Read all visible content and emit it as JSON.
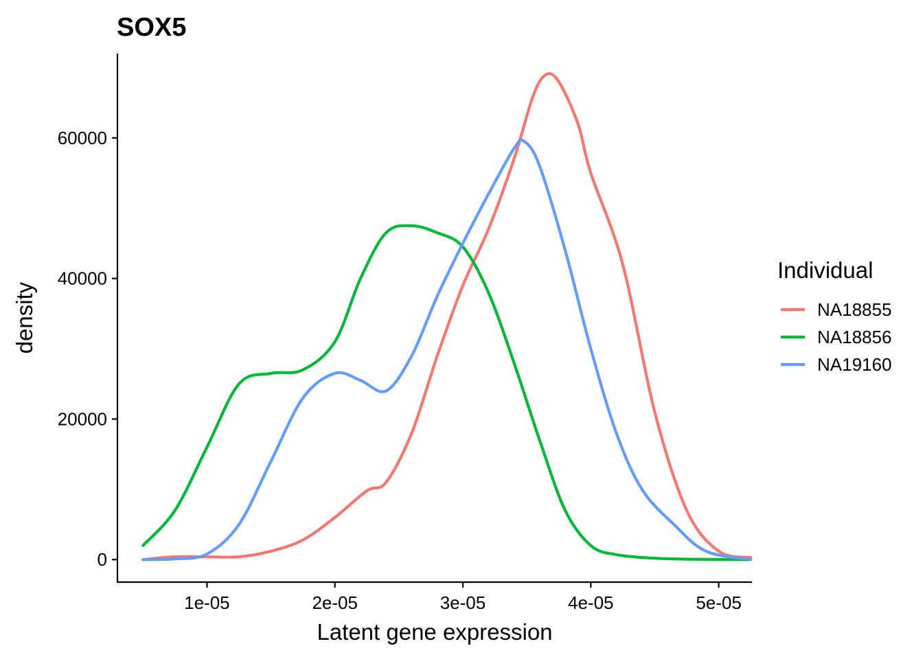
{
  "chart_data": {
    "type": "line",
    "title": "SOX5",
    "xlabel": "Latent gene expression",
    "ylabel": "density",
    "xlim": [
      3e-06,
      5.26e-05
    ],
    "ylim": [
      -3200,
      72000
    ],
    "x_ticks": [
      1e-05,
      2e-05,
      3e-05,
      4e-05,
      5e-05
    ],
    "x_tick_labels": [
      "1e-05",
      "2e-05",
      "3e-05",
      "4e-05",
      "5e-05"
    ],
    "y_ticks": [
      0,
      20000,
      40000,
      60000
    ],
    "y_tick_labels": [
      "0",
      "20000",
      "40000",
      "60000"
    ],
    "grid": false,
    "legend": {
      "title": "Individual",
      "position": "right"
    },
    "series": [
      {
        "name": "NA18855",
        "color": "#F8766D",
        "points": [
          [
            5e-06,
            0
          ],
          [
            7.5e-06,
            400
          ],
          [
            1e-05,
            400
          ],
          [
            1.25e-05,
            400
          ],
          [
            1.5e-05,
            1200
          ],
          [
            1.75e-05,
            2800
          ],
          [
            2e-05,
            6000
          ],
          [
            2.25e-05,
            9800
          ],
          [
            2.4e-05,
            11000
          ],
          [
            2.6e-05,
            18000
          ],
          [
            2.8e-05,
            29000
          ],
          [
            3e-05,
            39000
          ],
          [
            3.2e-05,
            47000
          ],
          [
            3.4e-05,
            57000
          ],
          [
            3.55e-05,
            66000
          ],
          [
            3.65e-05,
            69000
          ],
          [
            3.75e-05,
            68000
          ],
          [
            3.9e-05,
            62000
          ],
          [
            4e-05,
            55000
          ],
          [
            4.25e-05,
            42000
          ],
          [
            4.5e-05,
            21000
          ],
          [
            4.75e-05,
            7000
          ],
          [
            5e-05,
            1200
          ],
          [
            5.25e-05,
            300
          ]
        ]
      },
      {
        "name": "NA18856",
        "color": "#00BA38",
        "points": [
          [
            5e-06,
            2000
          ],
          [
            7.5e-06,
            7000
          ],
          [
            1e-05,
            16000
          ],
          [
            1.25e-05,
            25000
          ],
          [
            1.5e-05,
            26500
          ],
          [
            1.75e-05,
            27000
          ],
          [
            2e-05,
            31000
          ],
          [
            2.2e-05,
            40000
          ],
          [
            2.4e-05,
            46500
          ],
          [
            2.6e-05,
            47500
          ],
          [
            2.8e-05,
            46500
          ],
          [
            3e-05,
            44500
          ],
          [
            3.2e-05,
            38000
          ],
          [
            3.4e-05,
            28000
          ],
          [
            3.6e-05,
            17000
          ],
          [
            3.8e-05,
            7000
          ],
          [
            4e-05,
            2000
          ],
          [
            4.2e-05,
            700
          ],
          [
            4.5e-05,
            200
          ],
          [
            4.8e-05,
            50
          ],
          [
            5.25e-05,
            0
          ]
        ]
      },
      {
        "name": "NA19160",
        "color": "#619CFF",
        "points": [
          [
            5e-06,
            0
          ],
          [
            7.5e-06,
            100
          ],
          [
            1e-05,
            800
          ],
          [
            1.25e-05,
            5000
          ],
          [
            1.5e-05,
            14000
          ],
          [
            1.75e-05,
            23000
          ],
          [
            2e-05,
            26500
          ],
          [
            2.2e-05,
            25500
          ],
          [
            2.4e-05,
            24000
          ],
          [
            2.6e-05,
            29000
          ],
          [
            2.8e-05,
            37500
          ],
          [
            3e-05,
            45000
          ],
          [
            3.2e-05,
            52000
          ],
          [
            3.4e-05,
            58500
          ],
          [
            3.48e-05,
            59500
          ],
          [
            3.6e-05,
            56000
          ],
          [
            3.8e-05,
            44000
          ],
          [
            4e-05,
            30000
          ],
          [
            4.2e-05,
            18000
          ],
          [
            4.4e-05,
            10000
          ],
          [
            4.65e-05,
            5000
          ],
          [
            4.9e-05,
            1200
          ],
          [
            5.25e-05,
            0
          ]
        ]
      }
    ]
  }
}
